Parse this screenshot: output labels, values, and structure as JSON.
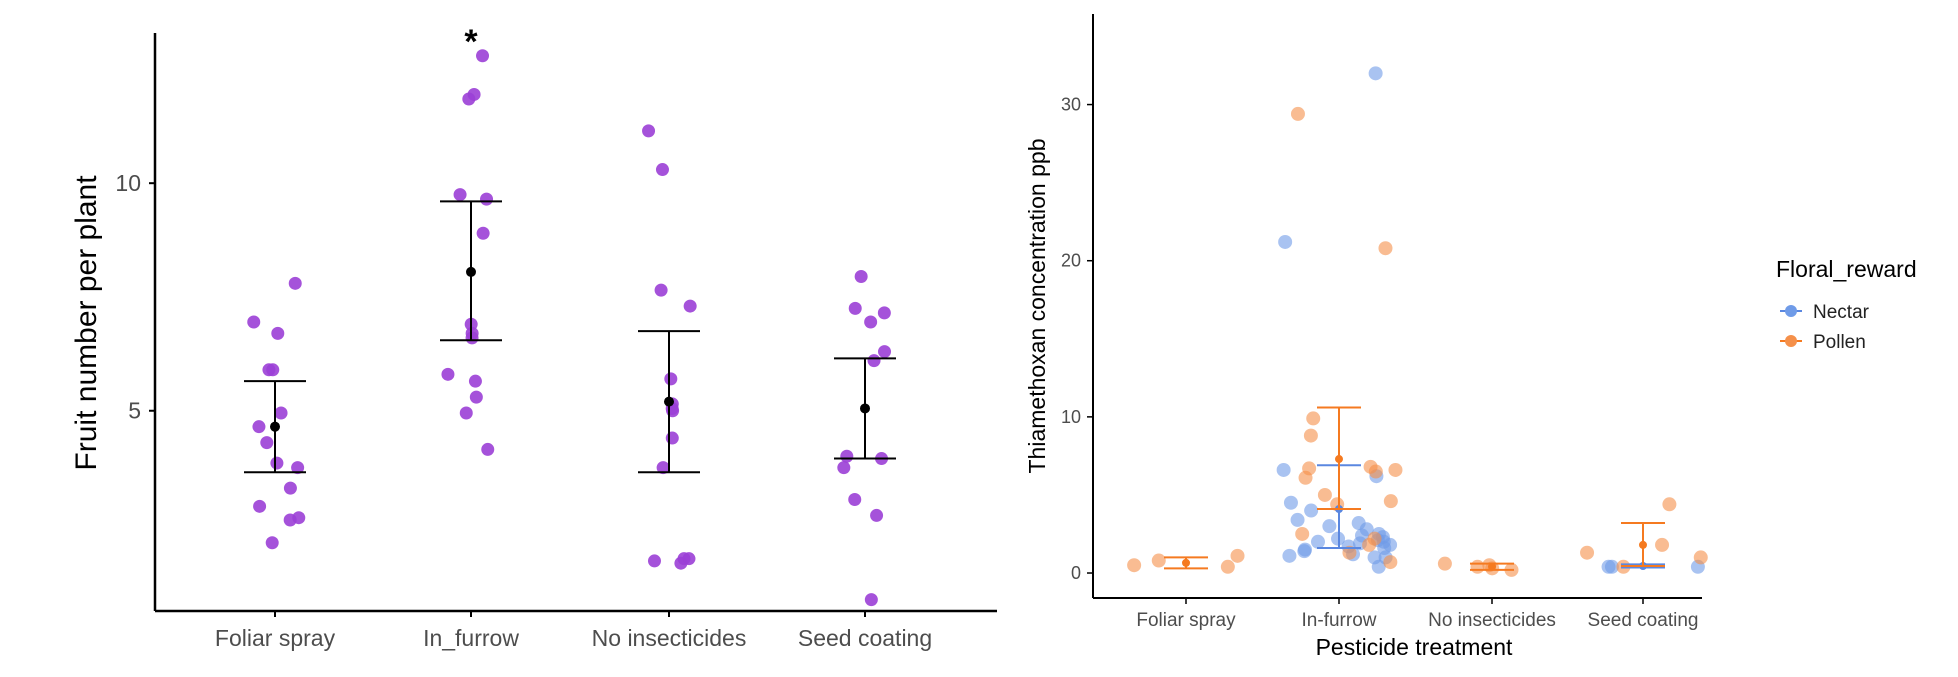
{
  "colors": {
    "left_points": "#9b3fd6",
    "mean_point": "#000000",
    "nectar": "#6f9be8",
    "pollen": "#f5904a",
    "pollen_bar": "#f57a20",
    "nectar_bar": "#5a87e0",
    "axis": "#000000",
    "tick_text": "#4d4d4d"
  },
  "chart_data": [
    {
      "type": "scatter",
      "title": "",
      "xlabel": "",
      "ylabel": "Fruit number per plant",
      "categories": [
        "Foliar spray",
        "In_furrow",
        "No insecticides",
        "Seed coating"
      ],
      "yticks": [
        5,
        10
      ],
      "ylim": [
        0.6,
        13.3
      ],
      "annotation": {
        "text": "*",
        "category": "In_furrow"
      },
      "points": [
        [
          7.8,
          6.95,
          6.7,
          5.9,
          5.9,
          4.95,
          4.65,
          4.3,
          3.85,
          3.75,
          3.3,
          2.9,
          2.65,
          2.6,
          2.1
        ],
        [
          12.8,
          11.95,
          11.85,
          9.75,
          9.65,
          8.9,
          6.9,
          6.7,
          6.6,
          5.8,
          5.65,
          5.3,
          4.95,
          4.15
        ],
        [
          11.15,
          10.3,
          7.65,
          7.3,
          5.7,
          5.15,
          5.05,
          5.0,
          4.4,
          3.75,
          1.75,
          1.75,
          1.7,
          1.65
        ],
        [
          7.95,
          7.25,
          7.15,
          6.95,
          6.3,
          6.1,
          4.0,
          3.95,
          3.75,
          3.05,
          2.7,
          0.85
        ]
      ],
      "means": [
        4.65,
        8.05,
        5.2,
        5.05
      ],
      "ci_low": [
        3.65,
        6.55,
        3.65,
        3.95
      ],
      "ci_high": [
        5.65,
        9.6,
        6.75,
        6.15
      ]
    },
    {
      "type": "scatter",
      "title": "",
      "xlabel": "Pesticide treatment",
      "ylabel": "Thiamethoxan concentration ppb",
      "categories": [
        "Foliar spray",
        "In-furrow",
        "No insecticides",
        "Seed coating"
      ],
      "yticks": [
        0,
        10,
        20,
        30
      ],
      "ylim": [
        -1.6,
        35.8
      ],
      "legend": {
        "title": "Floral_reward",
        "placement": "right",
        "entries": [
          "Nectar",
          "Pollen"
        ]
      },
      "series": [
        {
          "name": "Nectar",
          "points": [
            [],
            [
              32.0,
              21.2,
              6.6,
              6.2,
              4.5,
              4.0,
              3.4,
              3.2,
              3.0,
              2.8,
              2.5,
              2.4,
              2.3,
              2.2,
              2.1,
              2.0,
              2.0,
              1.9,
              1.8,
              1.7,
              1.6,
              1.5,
              1.4,
              1.2,
              1.1,
              1.0,
              1.0,
              0.4
            ],
            [],
            [
              0.4,
              0.4,
              0.4
            ]
          ],
          "means": [
            null,
            4.1,
            null,
            0.45
          ],
          "ci_low": [
            null,
            1.6,
            null,
            0.35
          ],
          "ci_high": [
            null,
            6.9,
            null,
            0.55
          ]
        },
        {
          "name": "Pollen",
          "points": [
            [
              1.1,
              0.8,
              0.5,
              0.4
            ],
            [
              29.4,
              20.8,
              9.9,
              8.8,
              6.8,
              6.7,
              6.6,
              6.5,
              6.1,
              5.0,
              4.6,
              4.4,
              2.5,
              2.2,
              1.8,
              1.3,
              0.7
            ],
            [
              0.6,
              0.5,
              0.4,
              0.3,
              0.2
            ],
            [
              4.4,
              1.8,
              1.3,
              1.0,
              0.4
            ]
          ],
          "means": [
            0.65,
            7.3,
            0.4,
            1.8
          ],
          "ci_low": [
            0.3,
            4.1,
            0.2,
            0.45
          ],
          "ci_high": [
            1.0,
            10.6,
            0.6,
            3.2
          ]
        }
      ]
    }
  ]
}
